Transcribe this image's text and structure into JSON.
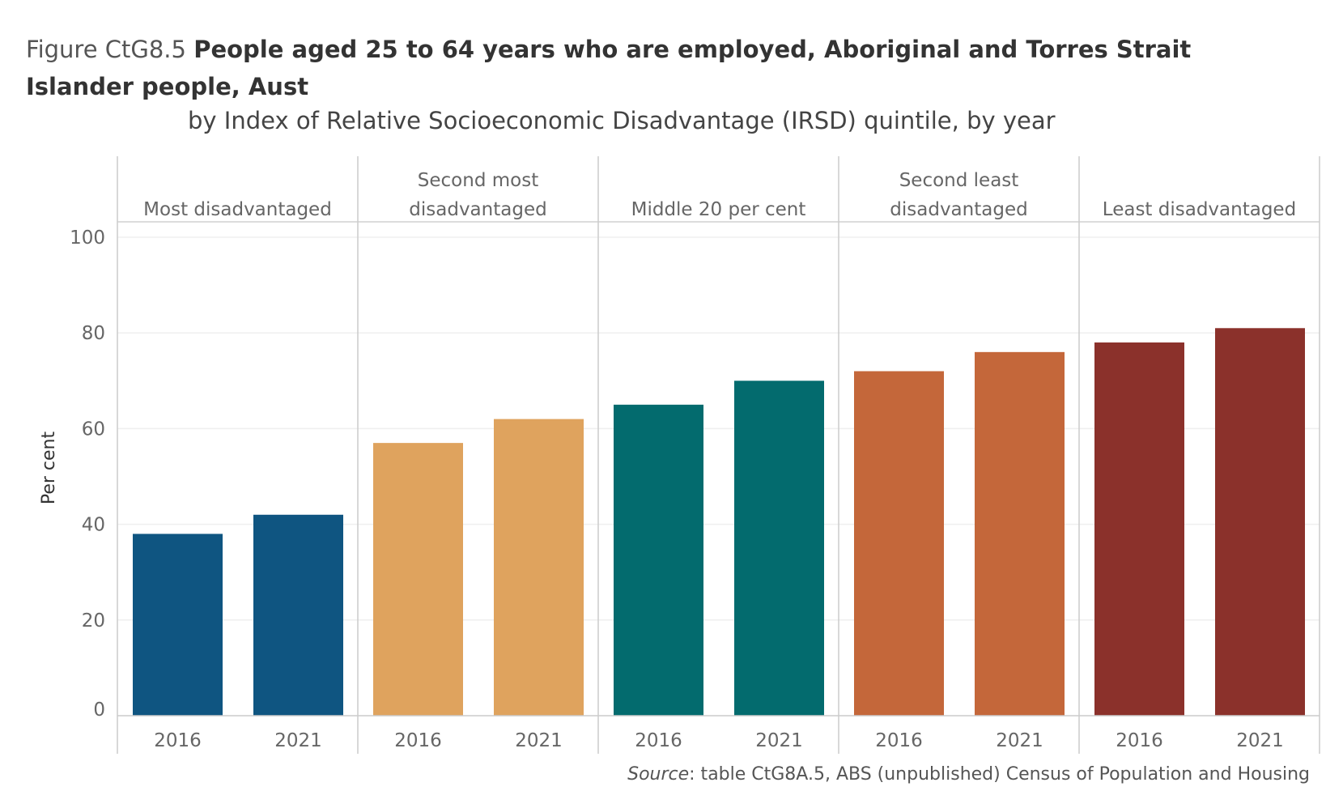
{
  "figure": {
    "label": "Figure CtG8.5",
    "title": "People aged 25 to 64 years who are employed, Aboriginal and Torres Strait Islander people, Aust",
    "subtitle": "by Index of Relative Socioeconomic Disadvantage (IRSD) quintile, by year"
  },
  "source": {
    "label": "Source",
    "text": ": table CtG8A.5, ABS (unpublished) Census of Population and Housing"
  },
  "chart_data": {
    "type": "bar",
    "ylabel": "Per cent",
    "ylim": [
      0,
      100
    ],
    "yticks": [
      0,
      20,
      40,
      60,
      80,
      100
    ],
    "grid": true,
    "panels": [
      {
        "name": [
          "Most disadvantaged"
        ],
        "color": "#0f5581",
        "categories": [
          "2016",
          "2021"
        ],
        "values": [
          38,
          42
        ]
      },
      {
        "name": [
          "Second most",
          "disadvantaged"
        ],
        "color": "#dfa35e",
        "categories": [
          "2016",
          "2021"
        ],
        "values": [
          57,
          62
        ]
      },
      {
        "name": [
          "Middle 20 per cent"
        ],
        "color": "#036b6e",
        "categories": [
          "2016",
          "2021"
        ],
        "values": [
          65,
          70
        ]
      },
      {
        "name": [
          "Second least",
          "disadvantaged"
        ],
        "color": "#c4673a",
        "categories": [
          "2016",
          "2021"
        ],
        "values": [
          72,
          76
        ]
      },
      {
        "name": [
          "Least disadvantaged"
        ],
        "color": "#8b312b",
        "categories": [
          "2016",
          "2021"
        ],
        "values": [
          78,
          81
        ]
      }
    ]
  }
}
